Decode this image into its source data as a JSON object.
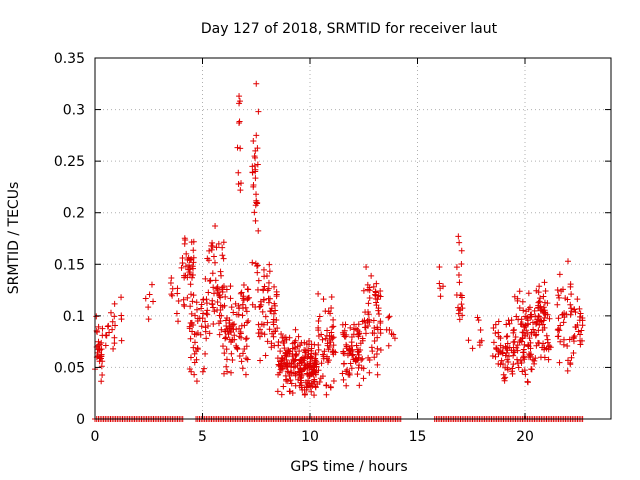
{
  "chart_data": {
    "type": "scatter",
    "title": "Day 127 of 2018, SRMTID for receiver laut",
    "xlabel": "GPS time / hours",
    "ylabel": "SRMTID / TECUs",
    "xlim": [
      0,
      24
    ],
    "ylim": [
      0,
      0.35
    ],
    "x_ticks": [
      0,
      5,
      10,
      15,
      20
    ],
    "x_tick_labels": [
      "0",
      "5",
      "10",
      "15",
      "20"
    ],
    "y_ticks": [
      0,
      0.05,
      0.1,
      0.15,
      0.2,
      0.25,
      0.3,
      0.35
    ],
    "y_tick_labels": [
      "0",
      "0.05",
      "0.1",
      "0.15",
      "0.2",
      "0.25",
      "0.3",
      "0.35"
    ],
    "grid": true,
    "marker": "+",
    "color": "#e00000",
    "zero_line_segments": [
      [
        0,
        4.1
      ],
      [
        4.7,
        14.3
      ],
      [
        15.8,
        22.7
      ]
    ],
    "clusters": [
      {
        "x": [
          0.0,
          0.35
        ],
        "y": [
          0.02,
          0.12
        ],
        "n": 30
      },
      {
        "x": [
          0.5,
          1.0
        ],
        "y": [
          0.04,
          0.12
        ],
        "n": 15
      },
      {
        "x": [
          1.2,
          1.3
        ],
        "y": [
          0.05,
          0.14
        ],
        "n": 4
      },
      {
        "x": [
          2.3,
          2.8
        ],
        "y": [
          0.09,
          0.15
        ],
        "n": 6
      },
      {
        "x": [
          3.4,
          4.0
        ],
        "y": [
          0.09,
          0.15
        ],
        "n": 10
      },
      {
        "x": [
          4.0,
          4.6
        ],
        "y": [
          0.1,
          0.19
        ],
        "n": 40
      },
      {
        "x": [
          4.4,
          5.2
        ],
        "y": [
          0.03,
          0.14
        ],
        "n": 50
      },
      {
        "x": [
          5.2,
          6.0
        ],
        "y": [
          0.06,
          0.19
        ],
        "n": 60
      },
      {
        "x": [
          6.0,
          7.2
        ],
        "y": [
          0.04,
          0.14
        ],
        "n": 90
      },
      {
        "x": [
          6.6,
          6.8
        ],
        "y": [
          0.18,
          0.32
        ],
        "n": 8
      },
      {
        "x": [
          7.3,
          7.6
        ],
        "y": [
          0.08,
          0.33
        ],
        "n": 30
      },
      {
        "x": [
          7.6,
          8.5
        ],
        "y": [
          0.05,
          0.16
        ],
        "n": 60
      },
      {
        "x": [
          8.5,
          9.5
        ],
        "y": [
          0.02,
          0.09
        ],
        "n": 100
      },
      {
        "x": [
          9.5,
          10.3
        ],
        "y": [
          0.02,
          0.08
        ],
        "n": 120
      },
      {
        "x": [
          10.3,
          11.2
        ],
        "y": [
          0.02,
          0.13
        ],
        "n": 60
      },
      {
        "x": [
          11.5,
          12.5
        ],
        "y": [
          0.03,
          0.1
        ],
        "n": 80
      },
      {
        "x": [
          12.5,
          13.3
        ],
        "y": [
          0.03,
          0.15
        ],
        "n": 60
      },
      {
        "x": [
          13.5,
          14.0
        ],
        "y": [
          0.06,
          0.11
        ],
        "n": 8
      },
      {
        "x": [
          16.0,
          16.2
        ],
        "y": [
          0.1,
          0.17
        ],
        "n": 5
      },
      {
        "x": [
          16.8,
          17.1
        ],
        "y": [
          0.06,
          0.18
        ],
        "n": 18
      },
      {
        "x": [
          17.3,
          18.0
        ],
        "y": [
          0.06,
          0.1
        ],
        "n": 8
      },
      {
        "x": [
          18.5,
          19.5
        ],
        "y": [
          0.03,
          0.1
        ],
        "n": 60
      },
      {
        "x": [
          19.5,
          20.5
        ],
        "y": [
          0.03,
          0.13
        ],
        "n": 90
      },
      {
        "x": [
          20.5,
          21.2
        ],
        "y": [
          0.05,
          0.14
        ],
        "n": 60
      },
      {
        "x": [
          21.5,
          22.2
        ],
        "y": [
          0.03,
          0.15
        ],
        "n": 40
      },
      {
        "x": [
          22.2,
          22.7
        ],
        "y": [
          0.06,
          0.12
        ],
        "n": 25
      }
    ],
    "highlight_points": [
      {
        "x": 7.5,
        "y": 0.325
      },
      {
        "x": 6.7,
        "y": 0.313
      },
      {
        "x": 6.7,
        "y": 0.306
      },
      {
        "x": 6.7,
        "y": 0.287
      },
      {
        "x": 7.6,
        "y": 0.298
      },
      {
        "x": 7.5,
        "y": 0.275
      },
      {
        "x": 7.45,
        "y": 0.24
      },
      {
        "x": 7.5,
        "y": 0.21
      },
      {
        "x": 16.9,
        "y": 0.177
      },
      {
        "x": 22.0,
        "y": 0.153
      }
    ]
  }
}
